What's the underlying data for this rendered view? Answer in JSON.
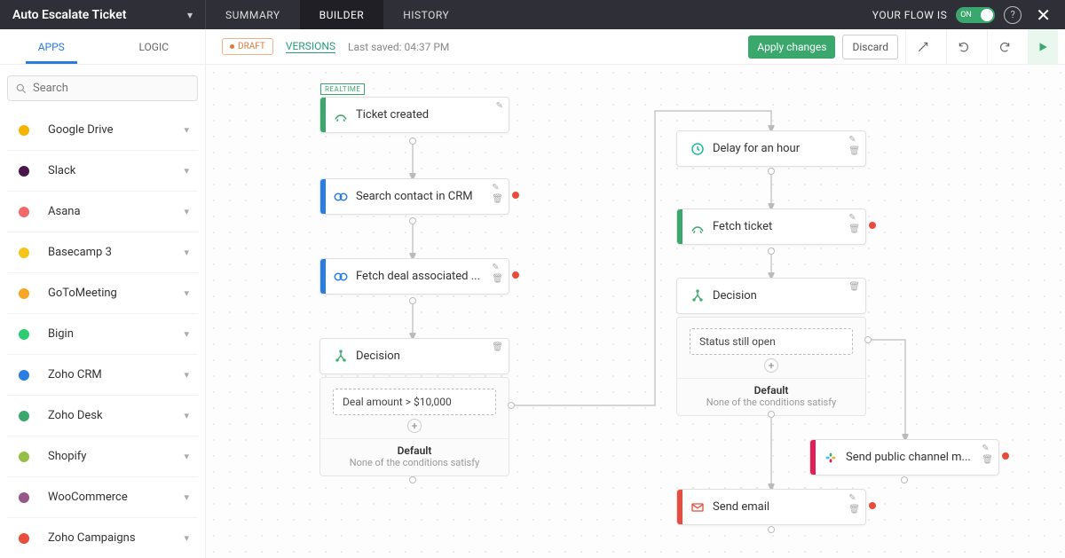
{
  "header": {
    "flow_title": "Auto Escalate Ticket",
    "tabs": {
      "summary": "SUMMARY",
      "builder": "BUILDER",
      "history": "HISTORY"
    },
    "status_label": "YOUR FLOW IS",
    "toggle_text": "ON"
  },
  "toolbar": {
    "subtabs": {
      "apps": "APPS",
      "logic": "LOGIC"
    },
    "draft_label": "DRAFT",
    "versions_label": "VERSIONS",
    "last_saved": "Last saved: 04:37 PM",
    "apply_label": "Apply changes",
    "discard_label": "Discard"
  },
  "sidebar": {
    "search_placeholder": "Search",
    "apps": [
      {
        "name": "Google Drive",
        "color": "#f4b400"
      },
      {
        "name": "Slack",
        "color": "#4a154b"
      },
      {
        "name": "Asana",
        "color": "#f06a6a"
      },
      {
        "name": "Basecamp 3",
        "color": "#f5c518"
      },
      {
        "name": "GoToMeeting",
        "color": "#f5a623"
      },
      {
        "name": "Bigin",
        "color": "#2ecc71"
      },
      {
        "name": "Zoho CRM",
        "color": "#2a7de1"
      },
      {
        "name": "Zoho Desk",
        "color": "#3aa76d"
      },
      {
        "name": "Shopify",
        "color": "#95bf47"
      },
      {
        "name": "WooCommerce",
        "color": "#96588a"
      },
      {
        "name": "Zoho Campaigns",
        "color": "#e74c3c"
      }
    ]
  },
  "colors": {
    "green": "#3aa76d",
    "blue": "#2a7de1",
    "teal": "#1abc9c",
    "red": "#e74c3c",
    "slack": "#e01e5a"
  },
  "nodes": {
    "n1": {
      "label": "Ticket created",
      "tag": "REALTIME"
    },
    "n2": {
      "label": "Search contact in CRM"
    },
    "n3": {
      "label": "Fetch deal associated ..."
    },
    "n4": {
      "label": "Decision"
    },
    "d1": {
      "condition": "Deal amount > $10,000",
      "default_title": "Default",
      "default_sub": "None of the conditions satisfy"
    },
    "n5": {
      "label": "Delay for an hour"
    },
    "n6": {
      "label": "Fetch ticket"
    },
    "n7": {
      "label": "Decision"
    },
    "d2": {
      "condition": "Status still open",
      "default_title": "Default",
      "default_sub": "None of the conditions satisfy"
    },
    "n8": {
      "label": "Send public channel m..."
    },
    "n9": {
      "label": "Send email"
    }
  }
}
